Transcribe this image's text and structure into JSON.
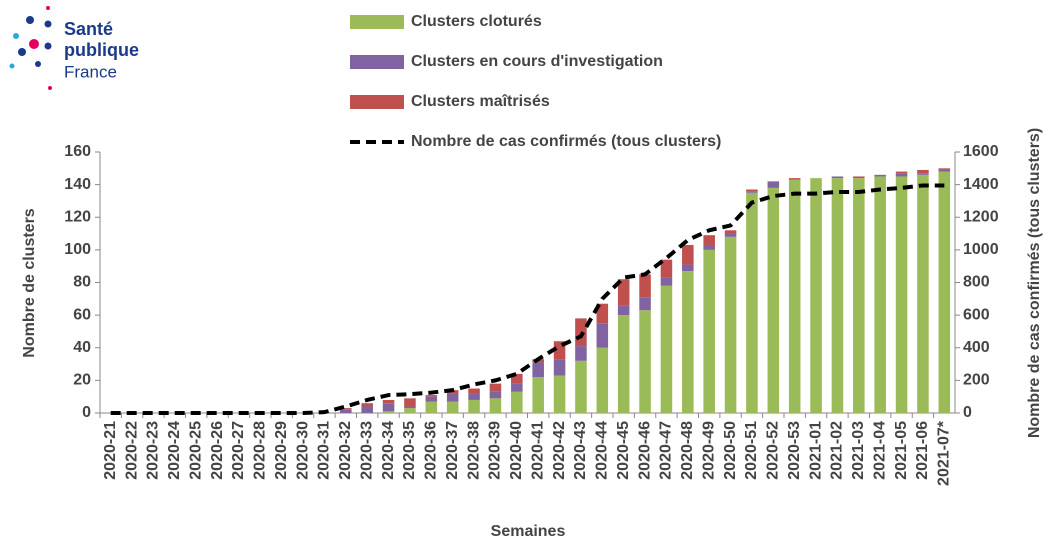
{
  "logo": {
    "line1": "Santé",
    "line2": "publique",
    "line3": "France"
  },
  "chart_data": {
    "type": "bar",
    "stacked": true,
    "xlabel": "Semaines",
    "ylabel": "Nombre de clusters",
    "y2label": "Nombre de cas confirmés (tous clusters)",
    "categories": [
      "2020-21",
      "2020-22",
      "2020-23",
      "2020-24",
      "2020-25",
      "2020-26",
      "2020-27",
      "2020-28",
      "2020-29",
      "2020-30",
      "2020-31",
      "2020-32",
      "2020-33",
      "2020-34",
      "2020-35",
      "2020-36",
      "2020-37",
      "2020-38",
      "2020-39",
      "2020-40",
      "2020-41",
      "2020-42",
      "2020-43",
      "2020-44",
      "2020-45",
      "2020-46",
      "2020-47",
      "2020-48",
      "2020-49",
      "2020-50",
      "2020-51",
      "2020-52",
      "2020-53",
      "2021-01",
      "2021-02",
      "2021-03",
      "2021-04",
      "2021-05",
      "2021-06",
      "2021-07*"
    ],
    "series": [
      {
        "name": "Clusters cloturés",
        "color": "#9bbb59",
        "type": "bar",
        "values": [
          0,
          0,
          0,
          0,
          0,
          0,
          0,
          0,
          0,
          0,
          0,
          0,
          0,
          1,
          3,
          7,
          7,
          8,
          9,
          13,
          22,
          23,
          32,
          40,
          60,
          63,
          78,
          87,
          100,
          108,
          135,
          138,
          143,
          144,
          144,
          144,
          145,
          145,
          146,
          148
        ]
      },
      {
        "name": "Clusters en cours d'investigation",
        "color": "#8064a2",
        "type": "bar",
        "values": [
          0,
          0,
          0,
          0,
          0,
          0,
          0,
          0,
          0,
          0,
          0,
          2,
          4,
          5,
          1,
          3,
          5,
          4,
          4,
          5,
          9,
          10,
          9,
          15,
          6,
          8,
          5,
          4,
          3,
          2,
          1,
          4,
          0,
          0,
          1,
          0,
          1,
          2,
          1,
          1
        ]
      },
      {
        "name": "Clusters maîtrisés",
        "color": "#c0504d",
        "type": "bar",
        "values": [
          0,
          0,
          0,
          0,
          0,
          0,
          0,
          0,
          0,
          0,
          0,
          1,
          2,
          2,
          5,
          1,
          2,
          3,
          5,
          6,
          2,
          11,
          17,
          12,
          16,
          14,
          11,
          12,
          6,
          2,
          1,
          0,
          1,
          0,
          0,
          1,
          0,
          1,
          2,
          1
        ]
      },
      {
        "name": "Nombre de cas confirmés (tous clusters)",
        "color": "#000000",
        "type": "line",
        "axis": "y2",
        "line_style": "dashed",
        "values": [
          0,
          0,
          0,
          0,
          0,
          0,
          0,
          0,
          0,
          0,
          5,
          40,
          80,
          110,
          115,
          125,
          140,
          175,
          200,
          240,
          330,
          410,
          470,
          700,
          830,
          850,
          950,
          1060,
          1120,
          1150,
          1290,
          1330,
          1345,
          1345,
          1355,
          1355,
          1370,
          1380,
          1395,
          1395
        ]
      }
    ],
    "ylim": [
      0,
      160
    ],
    "yticks": [
      0,
      20,
      40,
      60,
      80,
      100,
      120,
      140,
      160
    ],
    "y2lim": [
      0,
      1600
    ],
    "y2ticks": [
      0,
      200,
      400,
      600,
      800,
      1000,
      1200,
      1400,
      1600
    ],
    "legend": "top"
  }
}
